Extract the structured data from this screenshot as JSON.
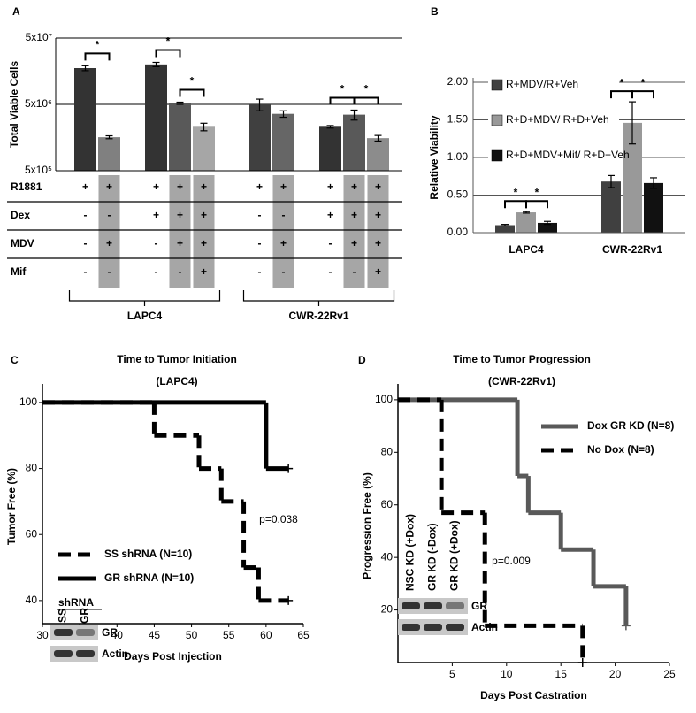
{
  "chart_data": [
    {
      "type": "bar",
      "panel": "A",
      "ylabel": "Total Viable Cells",
      "log_scale": true,
      "ylim": [
        500000,
        50000000
      ],
      "yticks": [
        {
          "value": 500000,
          "label": "5x10⁵"
        },
        {
          "value": 5000000,
          "label": "5x10⁶"
        },
        {
          "value": 50000000,
          "label": "5x10⁷"
        }
      ],
      "groups": [
        {
          "name": "LAPC4",
          "values": [
            17600000,
            1600000,
            20000000,
            5200000,
            2300000
          ],
          "errors": [
            1500000,
            80000,
            1500000,
            200000,
            300000
          ],
          "colors": [
            "#333333",
            "#808080",
            "#333333",
            "#595959",
            "#a6a6a6"
          ],
          "comparisons": [
            [
              0,
              1
            ],
            [
              2,
              3
            ],
            [
              3,
              4
            ]
          ]
        },
        {
          "name": "CWR-22Rv1",
          "values": [
            5000000,
            3600000,
            2300000,
            3500000,
            1550000
          ],
          "errors": [
            1000000,
            400000,
            100000,
            600000,
            150000
          ],
          "colors": [
            "#404040",
            "#666666",
            "#333333",
            "#595959",
            "#8c8c8c"
          ],
          "comparisons": [
            [
              2,
              3
            ],
            [
              3,
              4
            ]
          ]
        }
      ],
      "significance_label": "*",
      "conditions": [
        {
          "name": "R1881",
          "marks": [
            "+",
            "+",
            "+",
            "+",
            "+",
            "+",
            "+",
            "+",
            "+",
            "+"
          ]
        },
        {
          "name": "Dex",
          "marks": [
            "-",
            "-",
            "+",
            "+",
            "+",
            "-",
            "-",
            "+",
            "+",
            "+"
          ]
        },
        {
          "name": "MDV",
          "marks": [
            "-",
            "+",
            "-",
            "+",
            "+",
            "-",
            "+",
            "-",
            "+",
            "+"
          ]
        },
        {
          "name": "Mif",
          "marks": [
            "-",
            "-",
            "-",
            "-",
            "+",
            "-",
            "-",
            "-",
            "-",
            "+"
          ]
        }
      ]
    },
    {
      "type": "bar",
      "panel": "B",
      "ylabel": "Relative Viability",
      "ylim": [
        0,
        2
      ],
      "yticks": [
        {
          "value": 0,
          "label": "0.00"
        },
        {
          "value": 0.5,
          "label": "0.50"
        },
        {
          "value": 1,
          "label": "1.00"
        },
        {
          "value": 1.5,
          "label": "1.50"
        },
        {
          "value": 2,
          "label": "2.00"
        }
      ],
      "grid": true,
      "categories": [
        "LAPC4",
        "CWR-22Rv1"
      ],
      "series": [
        {
          "name": "R+MDV/R+Veh",
          "color": "#404040",
          "values": [
            0.1,
            0.68
          ],
          "errors": [
            0.01,
            0.08
          ]
        },
        {
          "name": "R+D+MDV/ R+D+Veh",
          "color": "#999999",
          "values": [
            0.27,
            1.46
          ],
          "errors": [
            0.01,
            0.28
          ]
        },
        {
          "name": "R+D+MDV+Mif/ R+D+Veh",
          "color": "#111111",
          "values": [
            0.13,
            0.66
          ],
          "errors": [
            0.02,
            0.07
          ]
        }
      ],
      "comparisons": [
        [
          0,
          1
        ],
        [
          1,
          2
        ]
      ],
      "significance_label": "*"
    },
    {
      "type": "line",
      "panel": "C",
      "title": "Time to Tumor Initiation",
      "subtitle": "(LAPC4)",
      "xlabel": "Days Post Injection",
      "ylabel": "Tumor Free (%)",
      "xlim": [
        30,
        65
      ],
      "xticks": [
        30,
        35,
        40,
        45,
        50,
        55,
        60,
        65
      ],
      "ylim": [
        33,
        104
      ],
      "yticks": [
        40,
        60,
        80,
        100
      ],
      "step": true,
      "series": [
        {
          "name": "SS shRNA (N=10)",
          "color": "#000000",
          "dash": true,
          "x": [
            30,
            45,
            51,
            54,
            57,
            59,
            63
          ],
          "values": [
            100,
            90,
            80,
            70,
            50,
            40,
            40
          ]
        },
        {
          "name": "GR shRNA (N=10)",
          "color": "#000000",
          "dash": false,
          "x": [
            30,
            60,
            63
          ],
          "values": [
            100,
            80,
            80
          ]
        }
      ],
      "annotation": "p=0.038",
      "legend": "lower left",
      "inset": {
        "header": "shRNA",
        "lanes": [
          "SS",
          "GR"
        ],
        "bands": [
          "GR",
          "Actin"
        ]
      }
    },
    {
      "type": "line",
      "panel": "D",
      "title": "Time to Tumor Progression",
      "subtitle": "(CWR-22Rv1)",
      "xlabel": "Days Post Castration",
      "ylabel": "Progression Free (%)",
      "xlim": [
        0,
        25
      ],
      "xticks": [
        5,
        10,
        15,
        20,
        25
      ],
      "ylim": [
        0,
        104
      ],
      "yticks": [
        20,
        40,
        60,
        80,
        100
      ],
      "step": true,
      "series": [
        {
          "name": "Dox GR KD (N=8)",
          "color": "#595959",
          "dash": false,
          "x": [
            0,
            11,
            12,
            15,
            18,
            21
          ],
          "values": [
            100,
            71,
            57,
            43,
            29,
            14
          ]
        },
        {
          "name": "No Dox (N=8)",
          "color": "#000000",
          "dash": true,
          "x": [
            0,
            4,
            8,
            17
          ],
          "values": [
            100,
            57,
            14,
            0
          ]
        }
      ],
      "annotation": "p=0.009",
      "legend": "upper right",
      "inset": {
        "lanes": [
          "NSC KD (+Dox)",
          "GR KD (-Dox)",
          "GR KD (+Dox)"
        ],
        "bands": [
          "GR",
          "Actin"
        ]
      }
    }
  ]
}
